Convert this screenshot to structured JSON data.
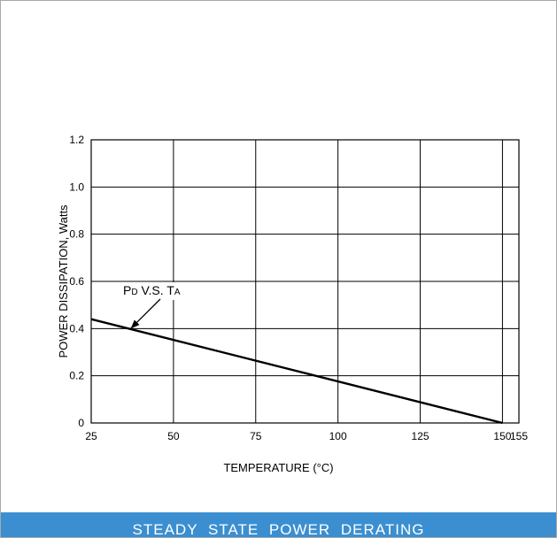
{
  "chart_data": {
    "type": "line",
    "xlabel": "TEMPERATURE (°C)",
    "ylabel": "POWER DISSIPATION, Watts",
    "xlim": [
      25,
      155
    ],
    "ylim": [
      0,
      1.2
    ],
    "x_ticks": [
      25,
      50,
      75,
      100,
      125,
      150,
      155
    ],
    "x_tick_labels": [
      "25",
      "50",
      "75",
      "100",
      "125",
      "150",
      "155"
    ],
    "y_ticks": [
      0,
      0.2,
      0.4,
      0.6,
      0.8,
      1.0,
      1.2
    ],
    "y_tick_labels": [
      "0",
      "0.2",
      "0.4",
      "0.6",
      "0.8",
      "1.0",
      "1.2"
    ],
    "grid": true,
    "series": [
      {
        "x": [
          25,
          150
        ],
        "y": [
          0.44,
          0.0
        ]
      }
    ],
    "annotation": {
      "parts": [
        {
          "text": "P",
          "sub": "D"
        },
        {
          "text": " V.S. "
        },
        {
          "text": "T",
          "sub": "A"
        }
      ],
      "arrow_to": {
        "x": 37,
        "y": 0.4
      }
    },
    "caption": "STEADY  STATE  POWER  DERATING",
    "colors": {
      "caption_bg": "#3b8fd0",
      "caption_text": "#ffffff",
      "line": "#000000",
      "frame": "#a8a8a8"
    }
  }
}
